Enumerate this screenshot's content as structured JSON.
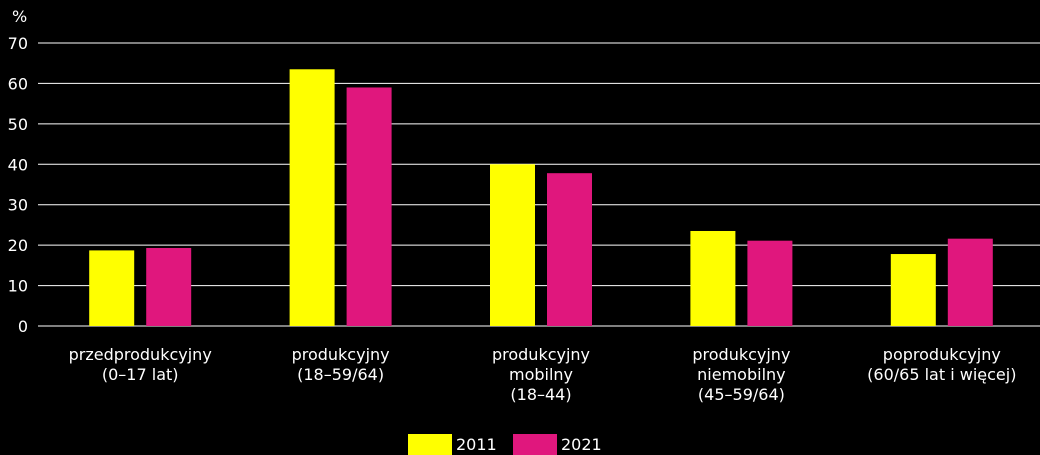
{
  "chart_data": {
    "type": "bar",
    "unit_label": "%",
    "ylim": [
      0,
      70
    ],
    "y_ticks": [
      0,
      10,
      20,
      30,
      40,
      50,
      60,
      70
    ],
    "grid": true,
    "legend_position": "bottom-center",
    "categories": [
      [
        "przedprodukcyjny",
        "(0–17 lat)"
      ],
      [
        "produkcyjny",
        "(18–59/64)"
      ],
      [
        "produkcyjny",
        "mobilny",
        "(18–44)"
      ],
      [
        "produkcyjny",
        "niemobilny",
        "(45–59/64)"
      ],
      [
        "poprodukcyjny",
        "(60/65 lat i więcej)"
      ]
    ],
    "series": [
      {
        "name": "2011",
        "color": "#ffff00",
        "values": [
          18.7,
          63.5,
          40.0,
          23.5,
          17.8
        ]
      },
      {
        "name": "2021",
        "color": "#e0177d",
        "values": [
          19.3,
          59.0,
          37.8,
          21.1,
          21.6
        ]
      }
    ]
  }
}
